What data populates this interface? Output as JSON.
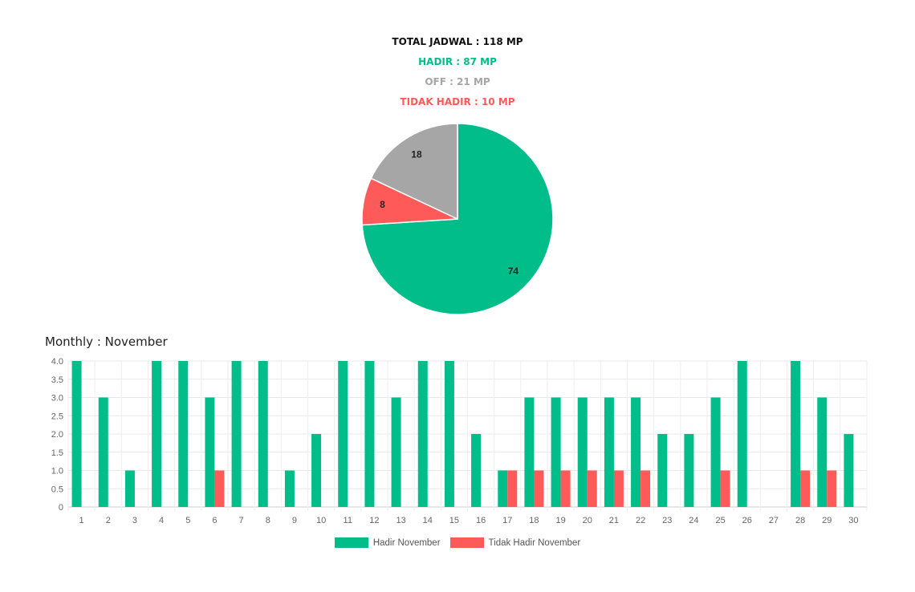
{
  "summary": {
    "total": "TOTAL JADWAL : 118 MP",
    "hadir": "HADIR : 87 MP",
    "off": "OFF : 21 MP",
    "tidak_hadir": "TIDAK HADIR : 10 MP"
  },
  "colors": {
    "hadir": "#00bd8a",
    "off": "#a6a6a6",
    "tidak_hadir": "#ff5a5a"
  },
  "monthly_title": "Monthly : November",
  "chart_data": [
    {
      "type": "pie",
      "slices": [
        {
          "label": "74",
          "value": 74,
          "color": "#00bd8a"
        },
        {
          "label": "8",
          "value": 8,
          "color": "#ff5a5a"
        },
        {
          "label": "18",
          "value": 18,
          "color": "#a6a6a6"
        }
      ]
    },
    {
      "type": "bar",
      "categories": [
        "1",
        "2",
        "3",
        "4",
        "5",
        "6",
        "7",
        "8",
        "9",
        "10",
        "11",
        "12",
        "13",
        "14",
        "15",
        "16",
        "17",
        "18",
        "19",
        "20",
        "21",
        "22",
        "23",
        "24",
        "25",
        "26",
        "27",
        "28",
        "29",
        "30"
      ],
      "series": [
        {
          "name": "Hadir November",
          "color": "#00bd8a",
          "values": [
            4,
            3,
            1,
            4,
            4,
            3,
            4,
            4,
            1,
            2,
            4,
            4,
            3,
            4,
            4,
            2,
            1,
            3,
            3,
            3,
            3,
            3,
            2,
            2,
            3,
            4,
            0,
            4,
            3,
            2
          ]
        },
        {
          "name": "Tidak Hadir November",
          "color": "#ff5a5a",
          "values": [
            0,
            0,
            0,
            0,
            0,
            1,
            0,
            0,
            0,
            0,
            0,
            0,
            0,
            0,
            0,
            0,
            1,
            1,
            1,
            1,
            1,
            1,
            0,
            0,
            1,
            0,
            0,
            1,
            1,
            0
          ]
        }
      ],
      "ylim": [
        0,
        4
      ],
      "yticks": [
        "0",
        "0.5",
        "1.0",
        "1.5",
        "2.0",
        "2.5",
        "3.0",
        "3.5",
        "4.0"
      ],
      "grid": true,
      "legend": "bottom-center"
    }
  ]
}
